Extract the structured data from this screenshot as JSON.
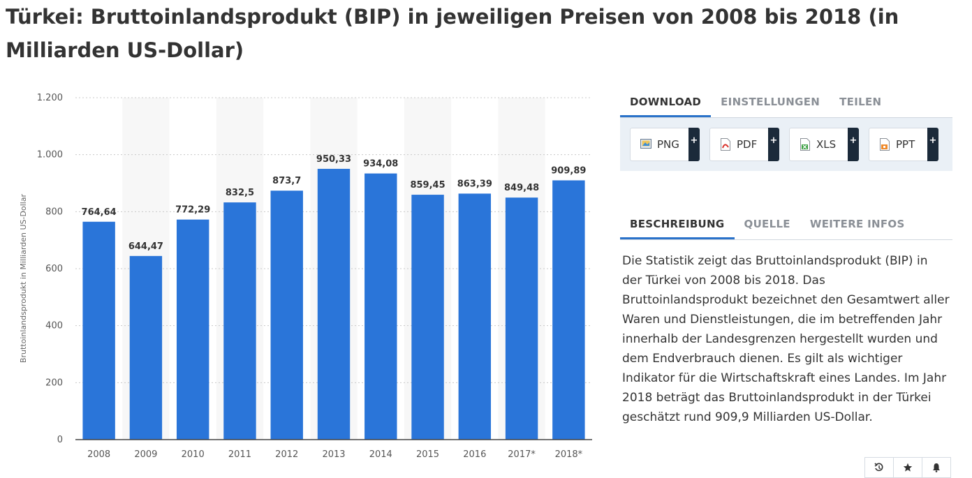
{
  "title": "Türkei: Bruttoinlandsprodukt (BIP) in jeweiligen Preisen von 2008 bis 2018 (in Milliarden US-Dollar)",
  "chart_data": {
    "type": "bar",
    "categories": [
      "2008",
      "2009",
      "2010",
      "2011",
      "2012",
      "2013",
      "2014",
      "2015",
      "2016",
      "2017*",
      "2018*"
    ],
    "values": [
      764.64,
      644.47,
      772.29,
      832.5,
      873.7,
      950.33,
      934.08,
      859.45,
      863.39,
      849.48,
      909.89
    ],
    "value_labels": [
      "764,64",
      "644,47",
      "772,29",
      "832,5",
      "873,7",
      "950,33",
      "934,08",
      "859,45",
      "863,39",
      "849,48",
      "909,89"
    ],
    "ylabel": "Bruttoinlandsprodukt in Milliarden US-Dollar",
    "xlabel": "",
    "ylim": [
      0,
      1200
    ],
    "yticks": [
      0,
      200,
      400,
      600,
      800,
      1000,
      1200
    ],
    "ytick_labels": [
      "0",
      "200",
      "400",
      "600",
      "800",
      "1.000",
      "1.200"
    ],
    "bar_color": "#2a75d9",
    "band_color": "#f7f7f7"
  },
  "download_tabs": [
    "DOWNLOAD",
    "EINSTELLUNGEN",
    "TEILEN"
  ],
  "downloads": [
    {
      "label": "PNG",
      "icon": "image-icon",
      "plus": "+"
    },
    {
      "label": "PDF",
      "icon": "pdf-icon",
      "plus": "+"
    },
    {
      "label": "XLS",
      "icon": "xls-icon",
      "plus": "+"
    },
    {
      "label": "PPT",
      "icon": "ppt-icon",
      "plus": "+"
    }
  ],
  "info_tabs": [
    "BESCHREIBUNG",
    "QUELLE",
    "WEITERE INFOS"
  ],
  "description": "Die Statistik zeigt das Bruttoinlandsprodukt (BIP) in der Türkei von 2008 bis 2018. Das Bruttoinlandsprodukt bezeichnet den Gesamtwert aller Waren und Dienstleistungen, die im betreffenden Jahr innerhalb der Landesgrenzen hergestellt wurden und dem Endverbrauch dienen. Es gilt als wichtiger Indikator für die Wirtschaftskraft eines Landes. Im Jahr 2018 beträgt das Bruttoinlandsprodukt in der Türkei geschätzt rund 909,9 Milliarden US-Dollar.",
  "footer_icons": [
    "history-icon",
    "star-icon",
    "bell-icon"
  ],
  "accent_color": "#2a72c9"
}
